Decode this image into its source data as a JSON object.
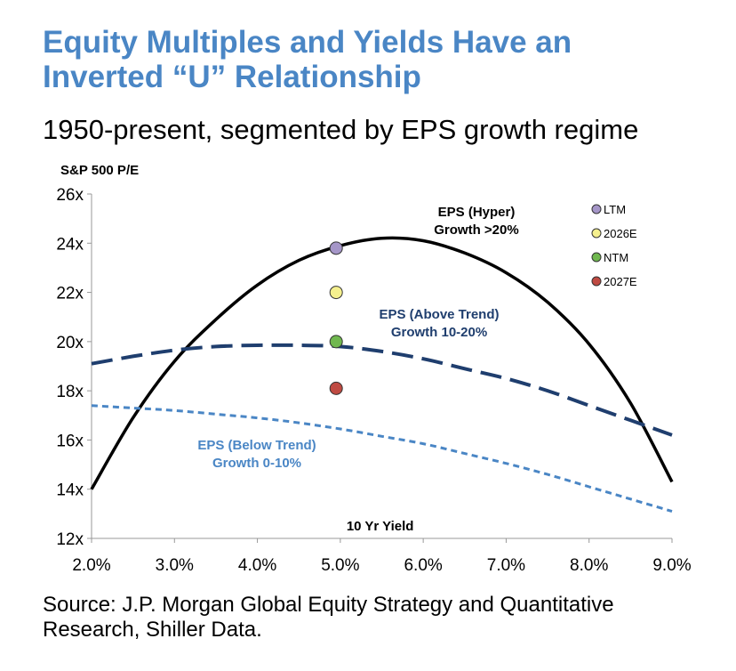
{
  "title_lines": [
    "Equity Multiples and Yields Have an",
    "Inverted “U” Relationship"
  ],
  "subtitle": "1950-present, segmented by EPS growth regime",
  "source_lines": [
    "Source: J.P. Morgan Global Equity Strategy and Quantitative",
    "Research, Shiller Data."
  ],
  "chart_data": {
    "type": "line",
    "ylabel": "S&P 500 P/E",
    "xlabel": "10 Yr Yield",
    "xlim": [
      2.0,
      9.0
    ],
    "ylim": [
      12,
      26
    ],
    "x_ticks": [
      "2.0%",
      "3.0%",
      "4.0%",
      "5.0%",
      "6.0%",
      "7.0%",
      "8.0%",
      "9.0%"
    ],
    "x_tick_values": [
      2,
      3,
      4,
      5,
      6,
      7,
      8,
      9
    ],
    "y_ticks": [
      "12x",
      "14x",
      "16x",
      "18x",
      "20x",
      "22x",
      "24x",
      "26x"
    ],
    "y_tick_values": [
      12,
      14,
      16,
      18,
      20,
      22,
      24,
      26
    ],
    "grid": false,
    "legend_position": "top-right",
    "series": [
      {
        "label_lines": [
          "EPS (Hyper)",
          "Growth >20%"
        ],
        "color": "#000000",
        "style": "solid",
        "x": [
          2.0,
          2.5,
          3.0,
          3.5,
          4.0,
          4.5,
          5.0,
          5.5,
          6.0,
          6.5,
          7.0,
          7.5,
          8.0,
          8.5,
          9.0
        ],
        "y": [
          14.0,
          16.9,
          19.2,
          20.9,
          22.3,
          23.3,
          23.9,
          24.2,
          24.1,
          23.6,
          22.8,
          21.6,
          19.9,
          17.5,
          14.3
        ]
      },
      {
        "label_lines": [
          "EPS (Above Trend)",
          "Growth  10-20%"
        ],
        "color": "#1f3e6e",
        "style": "long-dash",
        "x": [
          2.0,
          2.5,
          3.0,
          3.5,
          4.0,
          4.5,
          5.0,
          5.5,
          6.0,
          6.5,
          7.0,
          7.5,
          8.0,
          8.5,
          9.0
        ],
        "y": [
          19.1,
          19.4,
          19.65,
          19.8,
          19.85,
          19.85,
          19.8,
          19.6,
          19.3,
          18.9,
          18.5,
          18.0,
          17.4,
          16.8,
          16.2
        ]
      },
      {
        "label_lines": [
          "EPS (Below Trend)",
          "Growth 0-10%"
        ],
        "color": "#4a86c5",
        "style": "short-dash",
        "x": [
          2.0,
          2.5,
          3.0,
          3.5,
          4.0,
          4.5,
          5.0,
          5.5,
          6.0,
          6.5,
          7.0,
          7.5,
          8.0,
          8.5,
          9.0
        ],
        "y": [
          17.4,
          17.3,
          17.2,
          17.05,
          16.9,
          16.7,
          16.45,
          16.15,
          15.85,
          15.45,
          15.05,
          14.6,
          14.1,
          13.6,
          13.1
        ]
      }
    ],
    "points": [
      {
        "label": "LTM",
        "x": 4.95,
        "y": 23.8,
        "color": "#a596c8"
      },
      {
        "label": "2026E",
        "x": 4.95,
        "y": 22.0,
        "color": "#f5f08e"
      },
      {
        "label": "NTM",
        "x": 4.95,
        "y": 20.0,
        "color": "#70b84f"
      },
      {
        "label": "2027E",
        "x": 4.95,
        "y": 18.1,
        "color": "#bf4a42"
      }
    ]
  }
}
